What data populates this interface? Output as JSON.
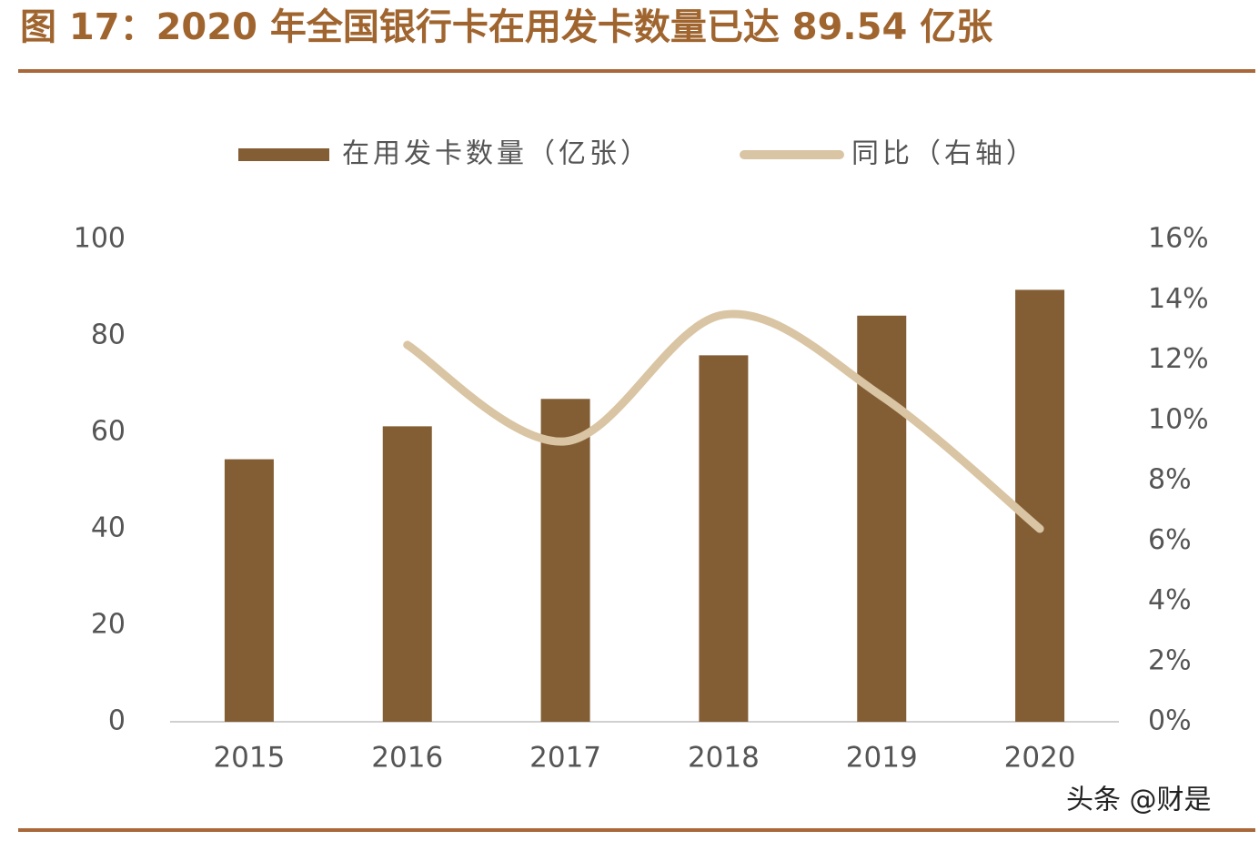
{
  "chart_data": {
    "type": "bar",
    "title": "图 17：2020 年全国银行卡在用发卡数量已达 89.54 亿张",
    "annotation": "头条 @财是",
    "categories": [
      "2015",
      "2016",
      "2017",
      "2018",
      "2019",
      "2020"
    ],
    "series": [
      {
        "name": "在用发卡数量（亿张）",
        "type": "bar",
        "color": "#835e35",
        "values": [
          54.42,
          61.25,
          66.93,
          75.97,
          84.19,
          89.54
        ]
      },
      {
        "name": "同比（右轴）",
        "type": "line",
        "axis": "y2",
        "color": "#d9c5a3",
        "values": [
          null,
          12.5,
          9.3,
          13.5,
          10.8,
          6.4
        ]
      }
    ],
    "ylim": [
      0,
      100
    ],
    "yticks": [
      0,
      20,
      40,
      60,
      80,
      100
    ],
    "y2lim": [
      0,
      16
    ],
    "y2ticks": [
      {
        "value": 0,
        "label": "0%"
      },
      {
        "value": 2,
        "label": "2%"
      },
      {
        "value": 4,
        "label": "4%"
      },
      {
        "value": 6,
        "label": "6%"
      },
      {
        "value": 8,
        "label": "8%"
      },
      {
        "value": 10,
        "label": "10%"
      },
      {
        "value": 12,
        "label": "12%"
      },
      {
        "value": 14,
        "label": "14%"
      },
      {
        "value": 16,
        "label": "16%"
      }
    ],
    "legend": "top"
  }
}
